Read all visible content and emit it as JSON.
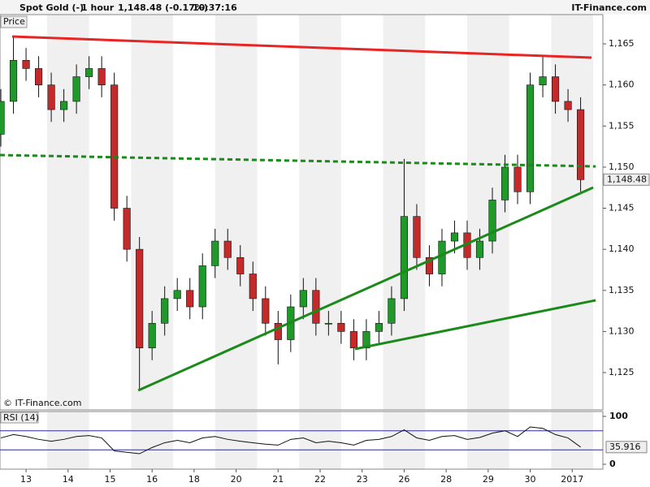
{
  "header": {
    "title": "Spot Gold (-)",
    "interval": "1 hour",
    "last": "1,148.48 (-0.17%)",
    "time": "10:37:16",
    "brand": "IT-Finance.com"
  },
  "chart_data": {
    "type": "candlestick",
    "panel_label": "Price",
    "copyright": "© IT-Finance.com",
    "x": [
      -0.6,
      -0.3,
      0,
      0.3,
      0.6,
      0.9,
      1.2,
      1.5,
      1.8,
      2.1,
      2.4,
      2.7,
      3.0,
      3.3,
      3.6,
      3.9,
      4.2,
      4.5,
      4.8,
      5.1,
      5.4,
      5.7,
      6.0,
      6.3,
      6.6,
      6.9,
      7.2,
      7.5,
      7.8,
      8.1,
      8.4,
      8.7,
      9.0,
      9.3,
      9.6,
      9.9,
      10.2,
      10.5,
      10.8,
      11.1,
      11.4,
      11.7,
      12.0,
      12.3,
      12.6,
      12.9,
      13.2
    ],
    "open": [
      1154,
      1158,
      1163,
      1162,
      1160,
      1157,
      1158,
      1161,
      1162,
      1160,
      1145,
      1140,
      1128,
      1131,
      1134,
      1135,
      1133,
      1138,
      1141,
      1139,
      1137,
      1134,
      1131,
      1129,
      1133,
      1135,
      1131,
      1131,
      1130,
      1128,
      1130,
      1131,
      1134,
      1144,
      1139,
      1137,
      1141,
      1142,
      1139,
      1141,
      1146,
      1150,
      1147,
      1160,
      1161,
      1158,
      1157
    ],
    "high": [
      1159.5,
      1166,
      1164.5,
      1163.5,
      1161.5,
      1159.5,
      1162.5,
      1163.5,
      1163.5,
      1161.5,
      1146.5,
      1141.5,
      1132.5,
      1135.5,
      1136.5,
      1136.5,
      1139.5,
      1142.5,
      1142.5,
      1140.5,
      1138.5,
      1135.5,
      1132.5,
      1134.5,
      1136.5,
      1136.5,
      1132.5,
      1132.5,
      1131.5,
      1131.5,
      1132.5,
      1135.5,
      1151,
      1145.5,
      1140.5,
      1142.5,
      1143.5,
      1143.5,
      1142.5,
      1147.5,
      1151.5,
      1151.5,
      1161.5,
      1163.5,
      1162.5,
      1159.5,
      1158.5
    ],
    "low": [
      1152.5,
      1156.5,
      1160.5,
      1158.5,
      1155.5,
      1155.5,
      1156.5,
      1159.5,
      1158.5,
      1143.5,
      1138.5,
      1123,
      1126.5,
      1129.5,
      1132.5,
      1131.5,
      1131.5,
      1136.5,
      1137.5,
      1135.5,
      1132.5,
      1129.5,
      1126,
      1127.5,
      1131.5,
      1129.5,
      1129.5,
      1128.5,
      1126.5,
      1126.5,
      1128.5,
      1129.5,
      1132.5,
      1137.5,
      1135.5,
      1135.5,
      1139.5,
      1137.5,
      1137.5,
      1139.5,
      1144.5,
      1145.5,
      1145.5,
      1158.5,
      1156.5,
      1155.5,
      1147
    ],
    "close": [
      1158,
      1163,
      1162,
      1160,
      1157,
      1158,
      1161,
      1162,
      1160,
      1145,
      1140,
      1128,
      1131,
      1134,
      1135,
      1133,
      1138,
      1141,
      1139,
      1137,
      1134,
      1131,
      1129,
      1133,
      1135,
      1131,
      1131,
      1130,
      1128,
      1130,
      1131,
      1134,
      1144,
      1139,
      1137,
      1141,
      1142,
      1139,
      1141,
      1146,
      1150,
      1147,
      1160,
      1161,
      1158,
      1157,
      1148.48
    ],
    "last_value_label": "1,148.48",
    "up_color": "#1f9a2a",
    "down_color": "#c42a2a",
    "wick_color": "#111111",
    "xlim": [
      -0.62,
      13.73
    ],
    "xticks": [
      {
        "value": 0,
        "label": "13"
      },
      {
        "value": 1,
        "label": "14"
      },
      {
        "value": 2,
        "label": "15"
      },
      {
        "value": 3,
        "label": "16"
      },
      {
        "value": 4,
        "label": "18"
      },
      {
        "value": 5,
        "label": "20"
      },
      {
        "value": 6,
        "label": "21"
      },
      {
        "value": 7,
        "label": "22"
      },
      {
        "value": 8,
        "label": "23"
      },
      {
        "value": 9,
        "label": "26"
      },
      {
        "value": 10,
        "label": "28"
      },
      {
        "value": 11,
        "label": "29"
      },
      {
        "value": 12,
        "label": "30"
      },
      {
        "value": 13,
        "label": "2017"
      }
    ],
    "ylim": [
      1120.46,
      1168.56
    ],
    "yticks": [
      {
        "value": 1125,
        "label": "1,125"
      },
      {
        "value": 1130,
        "label": "1,130"
      },
      {
        "value": 1135,
        "label": "1,135"
      },
      {
        "value": 1140,
        "label": "1,140"
      },
      {
        "value": 1145,
        "label": "1,145"
      },
      {
        "value": 1150,
        "label": "1,150"
      },
      {
        "value": 1155,
        "label": "1,155"
      },
      {
        "value": 1160,
        "label": "1,160"
      },
      {
        "value": 1165,
        "label": "1,165"
      }
    ],
    "trendlines": [
      {
        "color": "#e82424",
        "style": "solid",
        "x": [
          -0.33,
          13.46
        ],
        "y": [
          1165.89,
          1163.32
        ]
      },
      {
        "color": "#1a8a1a",
        "style": "dashed",
        "x": [
          -0.62,
          13.56
        ],
        "y": [
          1151.47,
          1150.09
        ]
      },
      {
        "color": "#1a8a1a",
        "style": "solid",
        "x": [
          2.67,
          13.5
        ],
        "y": [
          1122.83,
          1147.52
        ]
      },
      {
        "color": "#1a8a1a",
        "style": "solid",
        "x": [
          7.83,
          13.56
        ],
        "y": [
          1127.87,
          1133.8
        ]
      }
    ],
    "rsi": {
      "label": "RSI (14)",
      "color": "#111111",
      "level_color": "#2a2a9a",
      "values": [
        55,
        62,
        58,
        52,
        48,
        52,
        58,
        60,
        55,
        28,
        25,
        22,
        35,
        45,
        50,
        45,
        55,
        58,
        52,
        48,
        45,
        42,
        40,
        52,
        55,
        45,
        48,
        45,
        40,
        50,
        52,
        58,
        72,
        55,
        50,
        58,
        60,
        52,
        56,
        65,
        70,
        58,
        78,
        75,
        62,
        55,
        35.916
      ],
      "ylim": [
        0,
        100
      ],
      "yticks": [
        0,
        100
      ],
      "levels": [
        30,
        70
      ]
    }
  }
}
